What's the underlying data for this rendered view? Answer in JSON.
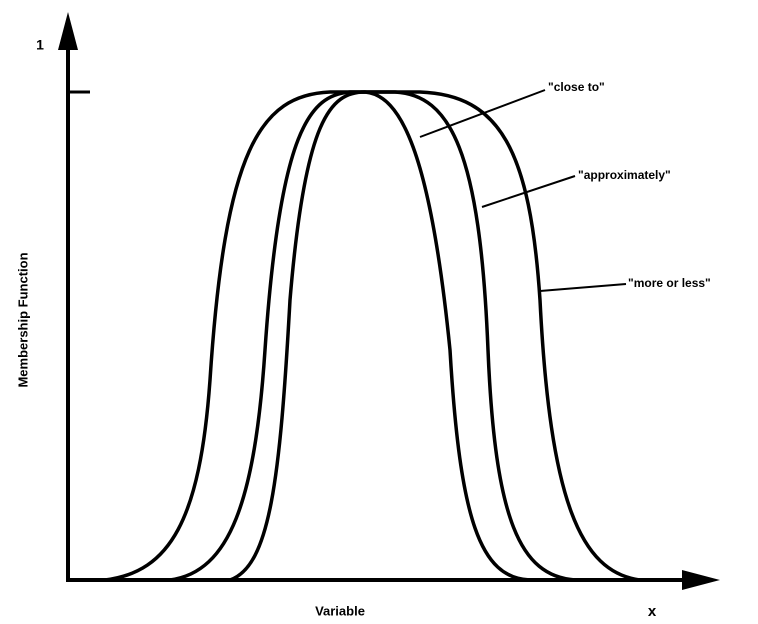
{
  "title_label_one": "1",
  "y_axis_label": "Membership Function",
  "x_axis_label": "Variable",
  "x_axis_symbol": "x",
  "curves": [
    {
      "label": "\"close to\""
    },
    {
      "label": "\"approximately\""
    },
    {
      "label": "\"more or less\""
    }
  ]
}
